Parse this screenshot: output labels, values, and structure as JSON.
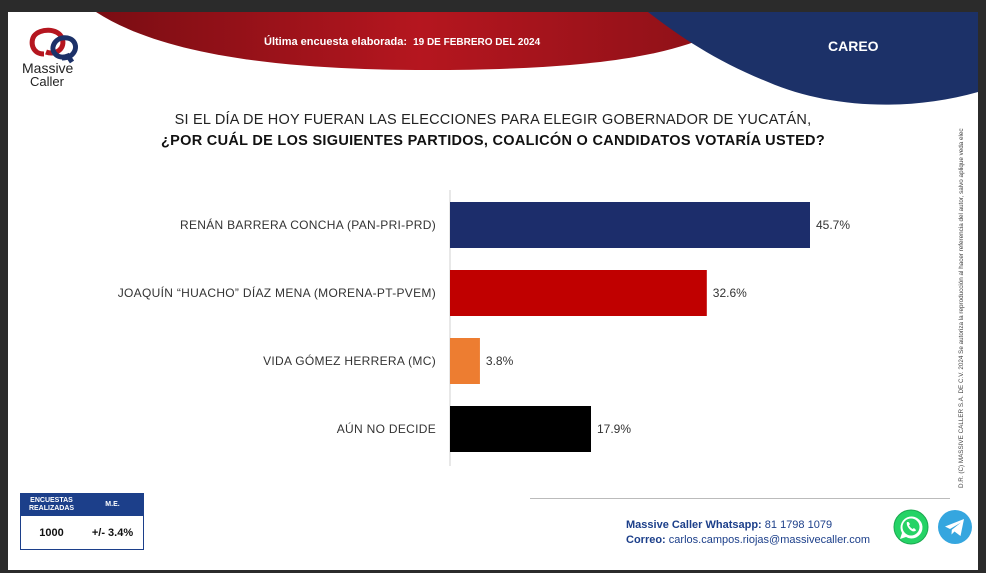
{
  "header": {
    "logo_line1": "Massive",
    "logo_line2": "Caller",
    "survey_label": "Última encuesta elaborada:",
    "survey_date": "19 DE FEBRERO DEL 2024",
    "section": "CAREO",
    "colors": {
      "red": "#b5161f",
      "navy": "#1c3168"
    }
  },
  "question": {
    "line1": "SI EL DÍA DE HOY FUERAN LAS ELECCIONES PARA ELEGIR GOBERNADOR DE YUCATÁN,",
    "line2": "¿POR CUÁL DE LOS SIGUIENTES PARTIDOS, COALICÓN O CANDIDATOS VOTARÍA USTED?"
  },
  "chart_data": {
    "type": "bar",
    "orientation": "horizontal",
    "categories": [
      "RENÁN BARRERA CONCHA (PAN-PRI-PRD)",
      "JOAQUÍN “HUACHO” DÍAZ MENA (MORENA-PT-PVEM)",
      "VIDA GÓMEZ HERRERA (MC)",
      "AÚN NO DECIDE"
    ],
    "values": [
      45.7,
      32.6,
      3.8,
      17.9
    ],
    "value_labels": [
      "45.7%",
      "32.6%",
      "3.8%",
      "17.9%"
    ],
    "colors": [
      "#1c2d6b",
      "#c00000",
      "#ed7d31",
      "#000000"
    ],
    "xlim": [
      0,
      50
    ],
    "grid": false
  },
  "side_note": "D.R. (C) MASSIVE CALLER S.A. DE C.V. 2024 Se autoriza la reproducción al hacer referencia del autor, salvo aplique veda electoral al contenido.",
  "stats": {
    "col1_header": "ENCUESTAS REALIZADAS",
    "col2_header": "M.E.",
    "col1_value": "1000",
    "col2_value": "+/- 3.4%"
  },
  "contact": {
    "whatsapp_label": "Massive Caller Whatsapp:",
    "whatsapp_value": "81 1798 1079",
    "email_label": "Correo:",
    "email_value": "carlos.campos.riojas@massivecaller.com"
  }
}
